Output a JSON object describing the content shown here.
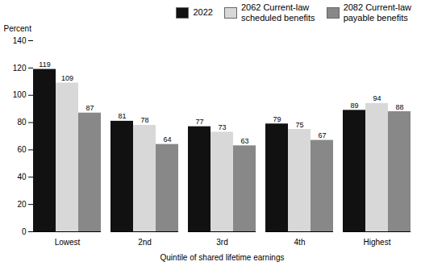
{
  "chart_data": {
    "type": "bar",
    "categories": [
      "Lowest",
      "2nd",
      "3rd",
      "4th",
      "Highest"
    ],
    "series": [
      {
        "name": "2022",
        "color": "#111111",
        "values": [
          119,
          81,
          77,
          79,
          89
        ]
      },
      {
        "name": "2062 Current-law\nscheduled benefits",
        "color": "#d8d8d8",
        "values": [
          109,
          78,
          73,
          75,
          94
        ]
      },
      {
        "name": "2082 Current-law\npayable benefits",
        "color": "#888888",
        "values": [
          87,
          64,
          63,
          67,
          88
        ]
      }
    ],
    "xlabel": "Quintile of shared lifetime earnings",
    "ylabel": "Percent",
    "ylim": [
      0,
      140
    ],
    "yticks": [
      0,
      20,
      40,
      60,
      80,
      100,
      120,
      140
    ],
    "data_labels": true,
    "legend": "upper right",
    "grid": false
  }
}
